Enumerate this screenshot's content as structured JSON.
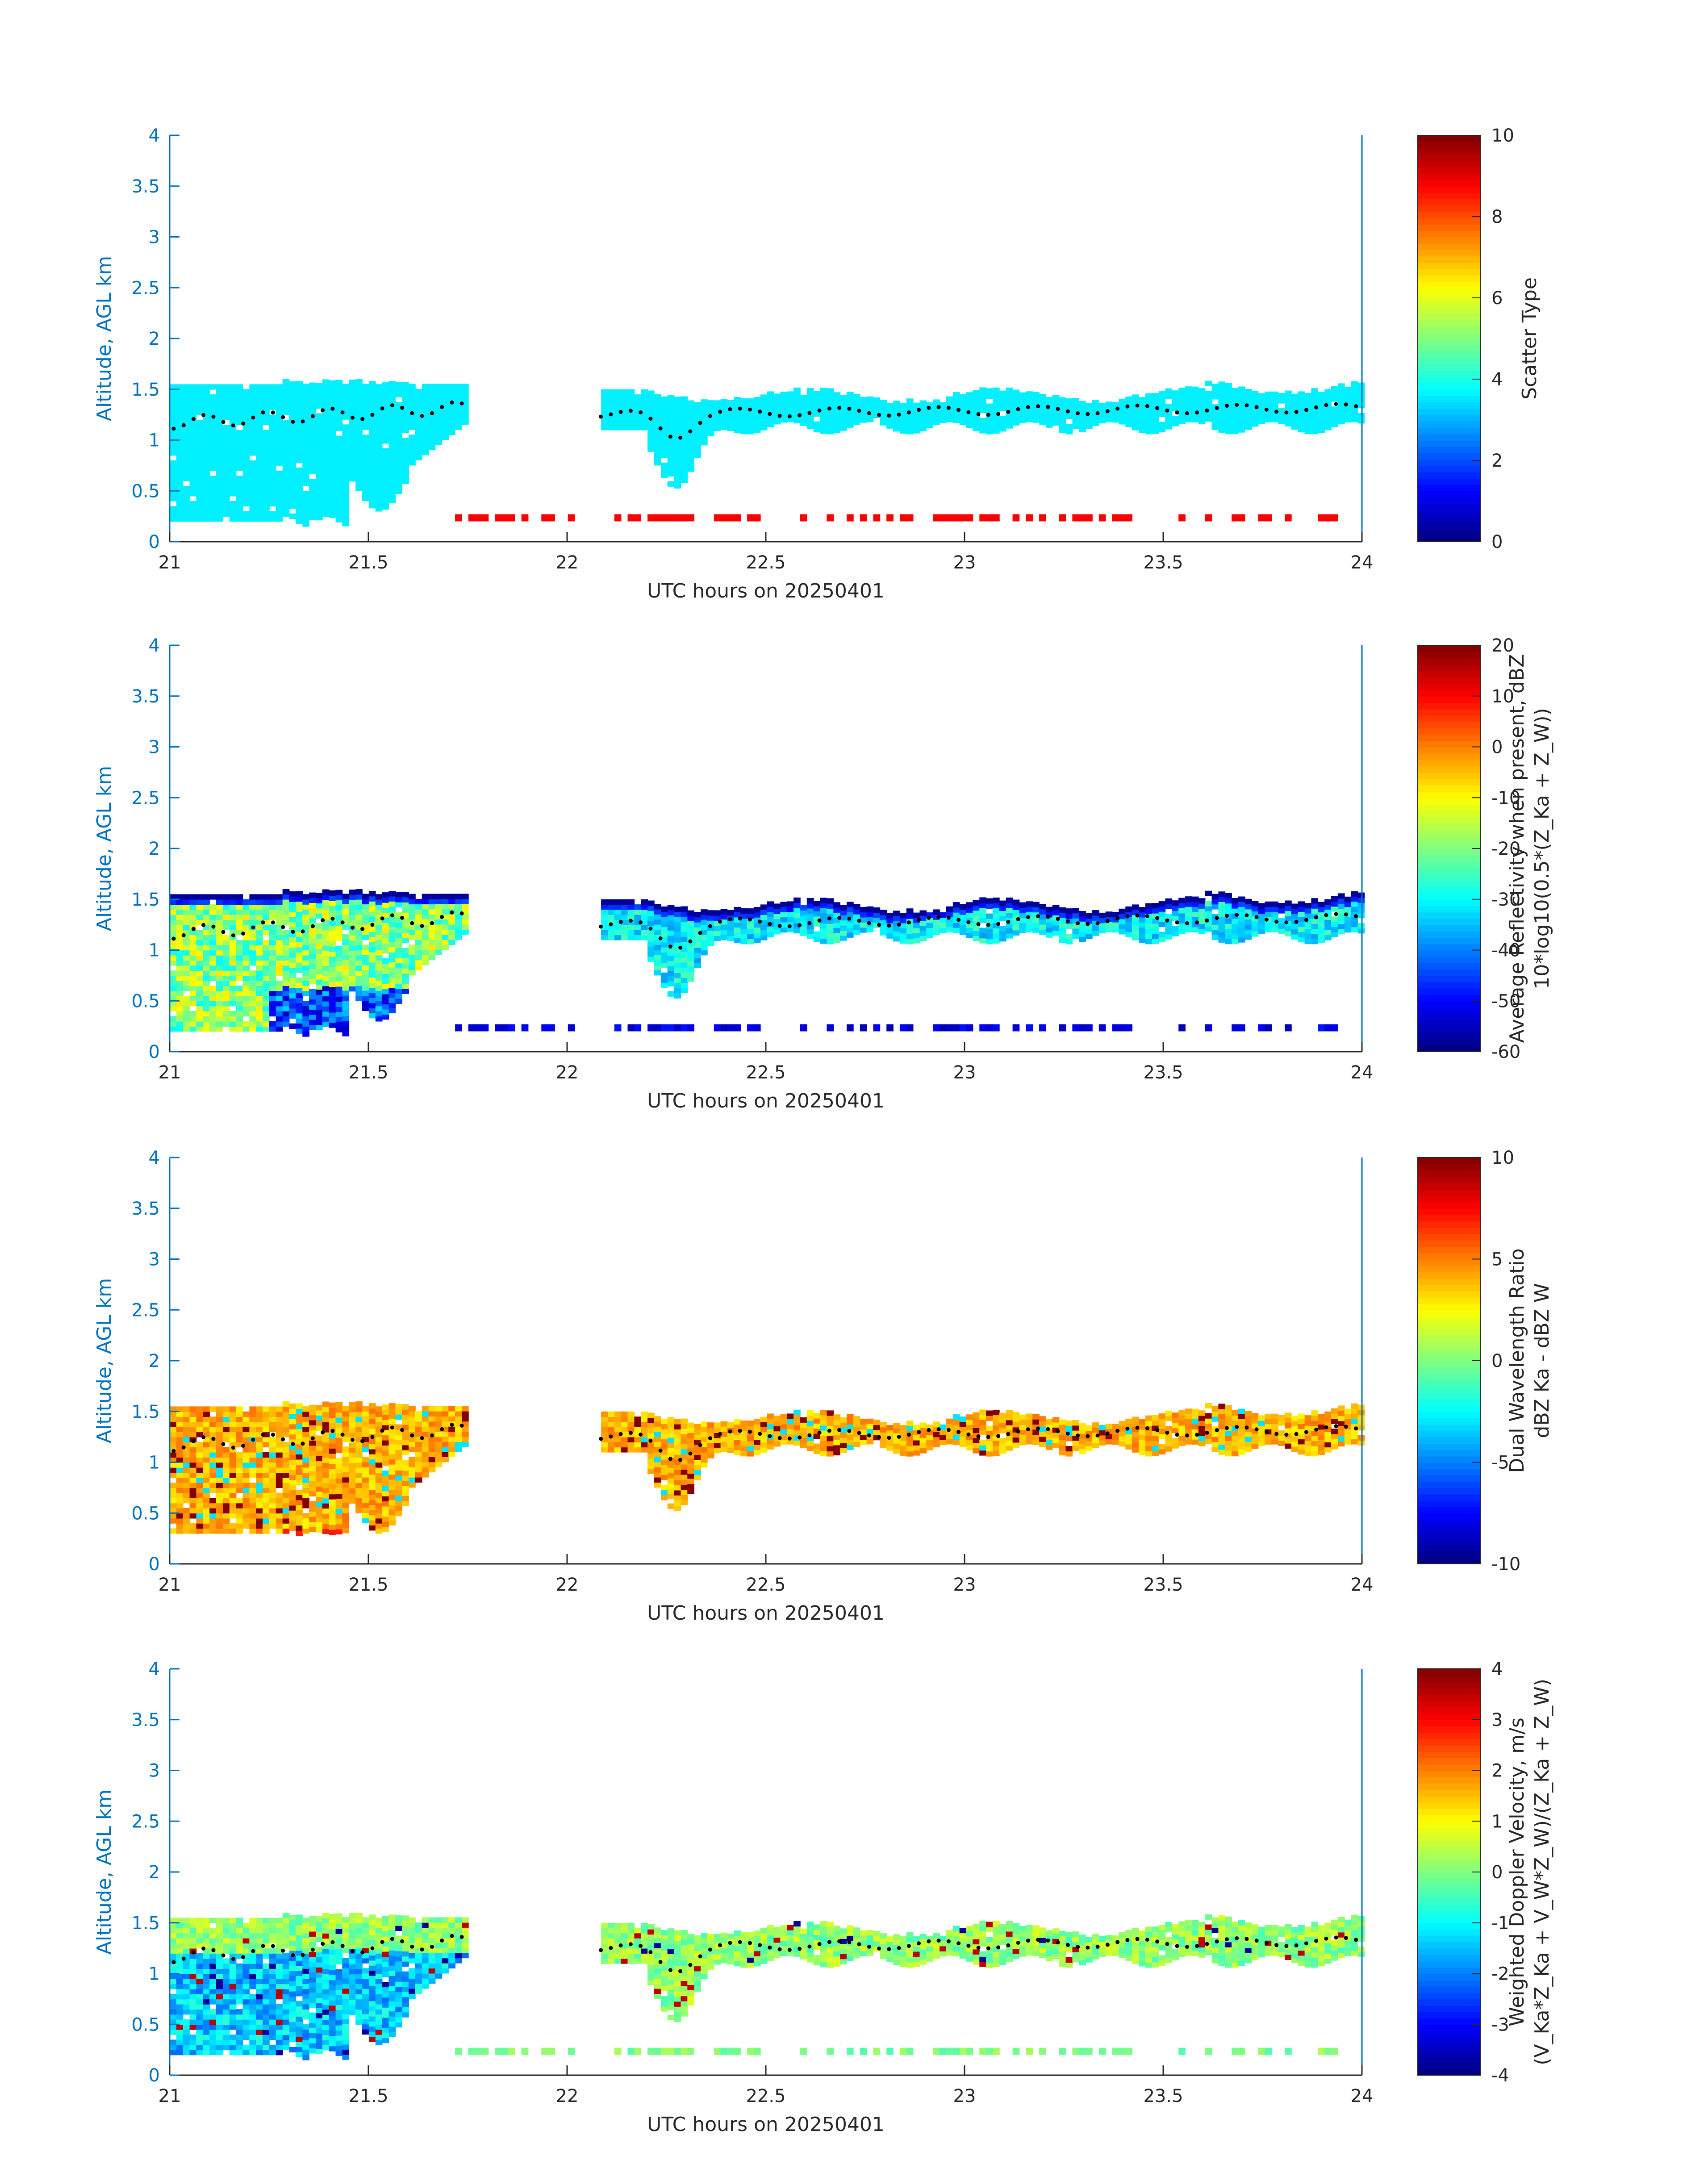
{
  "chart_data": [
    {
      "type": "heatmap",
      "xlabel": "UTC hours on 20250401",
      "ylabel": "Altitude, AGL km",
      "xlim": [
        21,
        24
      ],
      "ylim": [
        0,
        4
      ],
      "xticks": [
        "21",
        "21.5",
        "22",
        "22.5",
        "23",
        "23.5",
        "24"
      ],
      "yticks": [
        "0",
        "0.5",
        "1",
        "1.5",
        "2",
        "2.5",
        "3",
        "3.5",
        "4"
      ],
      "colorbar": {
        "label_lines": [
          "Scatter Type"
        ],
        "range": [
          0,
          10
        ],
        "ticks": [
          "0",
          "2",
          "4",
          "6",
          "8",
          "10"
        ]
      },
      "colormap": "jet",
      "variant": "scatter",
      "overlay": "black dots: cloud-top trace"
    },
    {
      "type": "heatmap",
      "xlabel": "UTC hours on 20250401",
      "ylabel": "Altitude, AGL km",
      "xlim": [
        21,
        24
      ],
      "ylim": [
        0,
        4
      ],
      "xticks": [
        "21",
        "21.5",
        "22",
        "22.5",
        "23",
        "23.5",
        "24"
      ],
      "yticks": [
        "0",
        "0.5",
        "1",
        "1.5",
        "2",
        "2.5",
        "3",
        "3.5",
        "4"
      ],
      "colorbar": {
        "label_lines": [
          "Average Reflectivity when present, dBZ",
          "10*log10(0.5*(Z_Ka + Z_W))"
        ],
        "range": [
          -60,
          20
        ],
        "ticks": [
          "-60",
          "-50",
          "-40",
          "-30",
          "-20",
          "-10",
          "0",
          "10",
          "20"
        ]
      },
      "colormap": "jet",
      "variant": "refl",
      "overlay": "black dots: cloud-top trace"
    },
    {
      "type": "heatmap",
      "xlabel": "UTC hours on 20250401",
      "ylabel": "Altitude, AGL km",
      "xlim": [
        21,
        24
      ],
      "ylim": [
        0,
        4
      ],
      "xticks": [
        "21",
        "21.5",
        "22",
        "22.5",
        "23",
        "23.5",
        "24"
      ],
      "yticks": [
        "0",
        "0.5",
        "1",
        "1.5",
        "2",
        "2.5",
        "3",
        "3.5",
        "4"
      ],
      "colorbar": {
        "label_lines": [
          "Dual Wavelength Ratio",
          "dBZ Ka - dBZ W"
        ],
        "range": [
          -10,
          10
        ],
        "ticks": [
          "-10",
          "-5",
          "0",
          "5",
          "10"
        ]
      },
      "colormap": "jet",
      "variant": "dwr",
      "overlay": "black dots: cloud-top trace"
    },
    {
      "type": "heatmap",
      "xlabel": "UTC hours on 20250401",
      "ylabel": "Altitude, AGL km",
      "xlim": [
        21,
        24
      ],
      "ylim": [
        0,
        4
      ],
      "xticks": [
        "21",
        "21.5",
        "22",
        "22.5",
        "23",
        "23.5",
        "24"
      ],
      "yticks": [
        "0",
        "0.5",
        "1",
        "1.5",
        "2",
        "2.5",
        "3",
        "3.5",
        "4"
      ],
      "colorbar": {
        "label_lines": [
          "Weighted Doppler Velocity, m/s",
          "(V_Ka*Z_Ka + V_W*Z_W)/(Z_Ka + Z_W)"
        ],
        "range": [
          -4,
          4
        ],
        "ticks": [
          "-4",
          "-3",
          "-2",
          "-1",
          "0",
          "1",
          "2",
          "3",
          "4"
        ]
      },
      "colormap": "jet",
      "variant": "vel",
      "overlay": "black dots: cloud-top trace"
    }
  ]
}
